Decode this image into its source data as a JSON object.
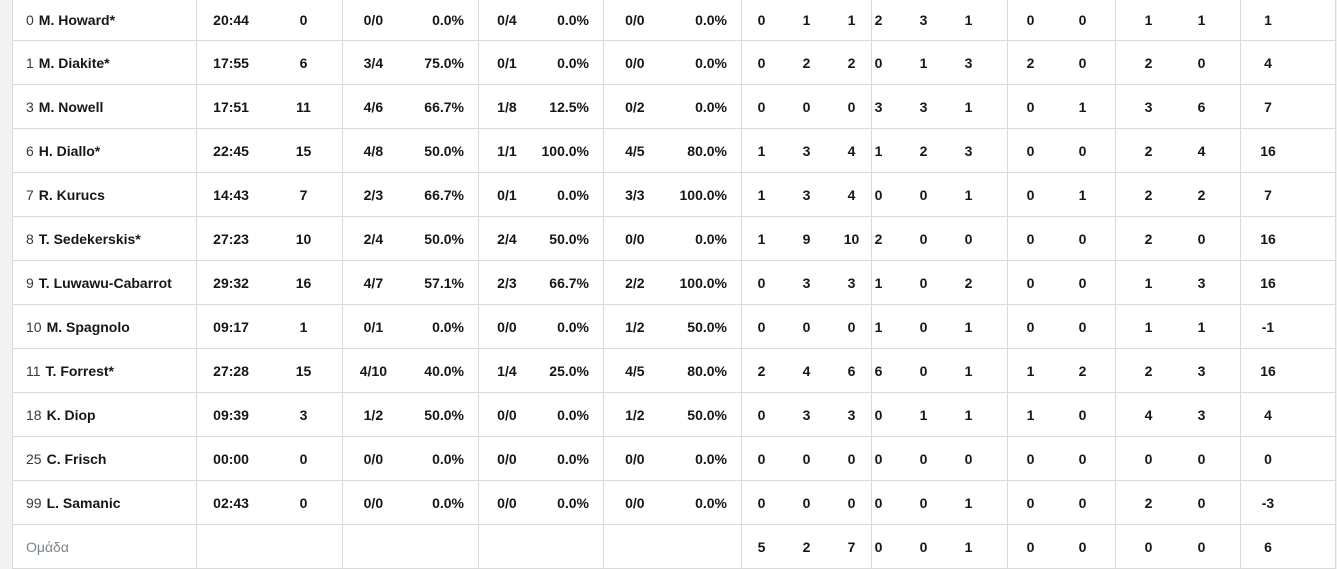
{
  "colors": {
    "page_background": "#f2f2f2",
    "table_background": "#ffffff",
    "grid_line": "#d8dadc",
    "text": "#14171a",
    "jersey_number": "#363b41",
    "team_row_text": "#7c858d"
  },
  "table": {
    "team_total_label": "Ομάδα",
    "players": [
      {
        "number": "0",
        "name": "M. Howard*",
        "min": "20:44",
        "pts": "0",
        "fg2": "0/0",
        "fg2_pct": "0.0%",
        "fg3": "0/4",
        "fg3_pct": "0.0%",
        "ft": "0/0",
        "ft_pct": "0.0%",
        "reb_o": "0",
        "reb_d": "1",
        "reb_t": "1",
        "ast": "2",
        "stl": "3",
        "tov": "1",
        "blk_fv": "0",
        "blk_ag": "0",
        "foul_cm": "1",
        "foul_rv": "1",
        "pir": "1"
      },
      {
        "number": "1",
        "name": "M. Diakite*",
        "min": "17:55",
        "pts": "6",
        "fg2": "3/4",
        "fg2_pct": "75.0%",
        "fg3": "0/1",
        "fg3_pct": "0.0%",
        "ft": "0/0",
        "ft_pct": "0.0%",
        "reb_o": "0",
        "reb_d": "2",
        "reb_t": "2",
        "ast": "0",
        "stl": "1",
        "tov": "3",
        "blk_fv": "2",
        "blk_ag": "0",
        "foul_cm": "2",
        "foul_rv": "0",
        "pir": "4"
      },
      {
        "number": "3",
        "name": "M. Nowell",
        "min": "17:51",
        "pts": "11",
        "fg2": "4/6",
        "fg2_pct": "66.7%",
        "fg3": "1/8",
        "fg3_pct": "12.5%",
        "ft": "0/2",
        "ft_pct": "0.0%",
        "reb_o": "0",
        "reb_d": "0",
        "reb_t": "0",
        "ast": "3",
        "stl": "3",
        "tov": "1",
        "blk_fv": "0",
        "blk_ag": "1",
        "foul_cm": "3",
        "foul_rv": "6",
        "pir": "7"
      },
      {
        "number": "6",
        "name": "H. Diallo*",
        "min": "22:45",
        "pts": "15",
        "fg2": "4/8",
        "fg2_pct": "50.0%",
        "fg3": "1/1",
        "fg3_pct": "100.0%",
        "ft": "4/5",
        "ft_pct": "80.0%",
        "reb_o": "1",
        "reb_d": "3",
        "reb_t": "4",
        "ast": "1",
        "stl": "2",
        "tov": "3",
        "blk_fv": "0",
        "blk_ag": "0",
        "foul_cm": "2",
        "foul_rv": "4",
        "pir": "16"
      },
      {
        "number": "7",
        "name": "R. Kurucs",
        "min": "14:43",
        "pts": "7",
        "fg2": "2/3",
        "fg2_pct": "66.7%",
        "fg3": "0/1",
        "fg3_pct": "0.0%",
        "ft": "3/3",
        "ft_pct": "100.0%",
        "reb_o": "1",
        "reb_d": "3",
        "reb_t": "4",
        "ast": "0",
        "stl": "0",
        "tov": "1",
        "blk_fv": "0",
        "blk_ag": "1",
        "foul_cm": "2",
        "foul_rv": "2",
        "pir": "7"
      },
      {
        "number": "8",
        "name": "T. Sedekerskis*",
        "min": "27:23",
        "pts": "10",
        "fg2": "2/4",
        "fg2_pct": "50.0%",
        "fg3": "2/4",
        "fg3_pct": "50.0%",
        "ft": "0/0",
        "ft_pct": "0.0%",
        "reb_o": "1",
        "reb_d": "9",
        "reb_t": "10",
        "ast": "2",
        "stl": "0",
        "tov": "0",
        "blk_fv": "0",
        "blk_ag": "0",
        "foul_cm": "2",
        "foul_rv": "0",
        "pir": "16"
      },
      {
        "number": "9",
        "name": "T. Luwawu-Cabarrot",
        "min": "29:32",
        "pts": "16",
        "fg2": "4/7",
        "fg2_pct": "57.1%",
        "fg3": "2/3",
        "fg3_pct": "66.7%",
        "ft": "2/2",
        "ft_pct": "100.0%",
        "reb_o": "0",
        "reb_d": "3",
        "reb_t": "3",
        "ast": "1",
        "stl": "0",
        "tov": "2",
        "blk_fv": "0",
        "blk_ag": "0",
        "foul_cm": "1",
        "foul_rv": "3",
        "pir": "16"
      },
      {
        "number": "10",
        "name": "M. Spagnolo",
        "min": "09:17",
        "pts": "1",
        "fg2": "0/1",
        "fg2_pct": "0.0%",
        "fg3": "0/0",
        "fg3_pct": "0.0%",
        "ft": "1/2",
        "ft_pct": "50.0%",
        "reb_o": "0",
        "reb_d": "0",
        "reb_t": "0",
        "ast": "1",
        "stl": "0",
        "tov": "1",
        "blk_fv": "0",
        "blk_ag": "0",
        "foul_cm": "1",
        "foul_rv": "1",
        "pir": "-1"
      },
      {
        "number": "11",
        "name": "T. Forrest*",
        "min": "27:28",
        "pts": "15",
        "fg2": "4/10",
        "fg2_pct": "40.0%",
        "fg3": "1/4",
        "fg3_pct": "25.0%",
        "ft": "4/5",
        "ft_pct": "80.0%",
        "reb_o": "2",
        "reb_d": "4",
        "reb_t": "6",
        "ast": "6",
        "stl": "0",
        "tov": "1",
        "blk_fv": "1",
        "blk_ag": "2",
        "foul_cm": "2",
        "foul_rv": "3",
        "pir": "16"
      },
      {
        "number": "18",
        "name": "K. Diop",
        "min": "09:39",
        "pts": "3",
        "fg2": "1/2",
        "fg2_pct": "50.0%",
        "fg3": "0/0",
        "fg3_pct": "0.0%",
        "ft": "1/2",
        "ft_pct": "50.0%",
        "reb_o": "0",
        "reb_d": "3",
        "reb_t": "3",
        "ast": "0",
        "stl": "1",
        "tov": "1",
        "blk_fv": "1",
        "blk_ag": "0",
        "foul_cm": "4",
        "foul_rv": "3",
        "pir": "4"
      },
      {
        "number": "25",
        "name": "C. Frisch",
        "min": "00:00",
        "pts": "0",
        "fg2": "0/0",
        "fg2_pct": "0.0%",
        "fg3": "0/0",
        "fg3_pct": "0.0%",
        "ft": "0/0",
        "ft_pct": "0.0%",
        "reb_o": "0",
        "reb_d": "0",
        "reb_t": "0",
        "ast": "0",
        "stl": "0",
        "tov": "0",
        "blk_fv": "0",
        "blk_ag": "0",
        "foul_cm": "0",
        "foul_rv": "0",
        "pir": "0"
      },
      {
        "number": "99",
        "name": "L. Samanic",
        "min": "02:43",
        "pts": "0",
        "fg2": "0/0",
        "fg2_pct": "0.0%",
        "fg3": "0/0",
        "fg3_pct": "0.0%",
        "ft": "0/0",
        "ft_pct": "0.0%",
        "reb_o": "0",
        "reb_d": "0",
        "reb_t": "0",
        "ast": "0",
        "stl": "0",
        "tov": "1",
        "blk_fv": "0",
        "blk_ag": "0",
        "foul_cm": "2",
        "foul_rv": "0",
        "pir": "-3"
      }
    ],
    "team_totals": {
      "reb_o": "5",
      "reb_d": "2",
      "reb_t": "7",
      "ast": "0",
      "stl": "0",
      "tov": "1",
      "blk_fv": "0",
      "blk_ag": "0",
      "foul_cm": "0",
      "foul_rv": "0",
      "pir": "6"
    }
  }
}
